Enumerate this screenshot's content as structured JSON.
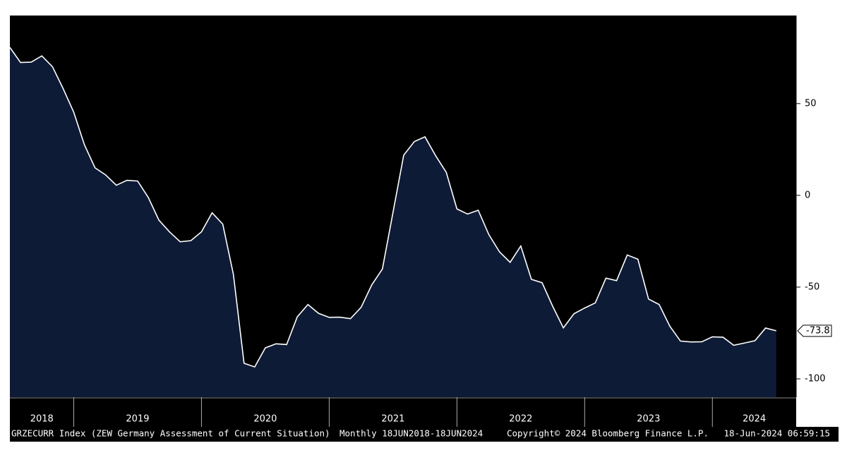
{
  "chart_data": {
    "type": "area",
    "title": "GRZECURR Index (ZEW Germany Assessment of Current Situation)",
    "frequency": "Monthly 18JUN2018-18JUN2024",
    "copyright": "Copyright© 2024 Bloomberg Finance L.P.",
    "timestamp": "18-Jun-2024 06:59:15",
    "years": [
      "2018",
      "2019",
      "2020",
      "2021",
      "2022",
      "2023",
      "2024"
    ],
    "values": [
      80.6,
      72.4,
      72.6,
      76.0,
      70.1,
      58.2,
      45.3,
      27.6,
      15.0,
      11.1,
      5.5,
      8.2,
      7.8,
      -1.1,
      -13.5,
      -19.9,
      -25.3,
      -24.7,
      -19.9,
      -9.5,
      -15.7,
      -43.1,
      -91.5,
      -93.5,
      -83.1,
      -80.9,
      -81.3,
      -66.2,
      -59.5,
      -64.3,
      -66.5,
      -66.4,
      -67.2,
      -61.0,
      -48.8,
      -40.1,
      -9.1,
      21.9,
      29.3,
      31.9,
      21.6,
      12.5,
      -7.4,
      -10.2,
      -8.1,
      -21.4,
      -30.8,
      -36.5,
      -27.6,
      -45.8,
      -47.6,
      -60.5,
      -72.2,
      -64.5,
      -61.4,
      -58.6,
      -45.1,
      -46.5,
      -32.5,
      -34.8,
      -56.5,
      -59.5,
      -71.3,
      -79.4,
      -79.9,
      -79.8,
      -77.1,
      -77.3,
      -81.7,
      -80.5,
      -79.2,
      -72.3,
      -73.8
    ],
    "color": "#0e1b36",
    "line_color": "#ffffff",
    "ylim": [
      -110,
      98
    ],
    "yticks": [
      50,
      0,
      -50,
      -100
    ]
  }
}
